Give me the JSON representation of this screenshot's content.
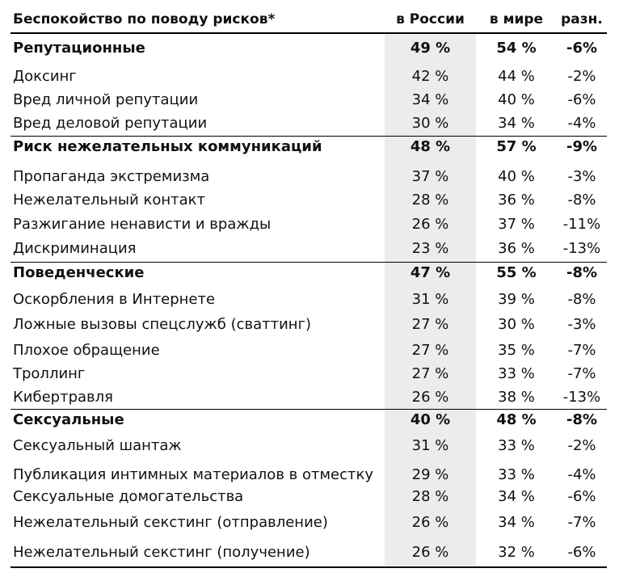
{
  "table": {
    "header": {
      "title": "Беспокойство по поводу рисков*",
      "col_russia": "в России",
      "col_world": "в мире",
      "col_diff": "разн."
    },
    "rows": [
      {
        "label": "Репутационные",
        "russia": "49 %",
        "world": "54 %",
        "diff": "-6%",
        "group": true
      },
      {
        "label": "Доксинг",
        "russia": "42 %",
        "world": "44 %",
        "diff": "-2%"
      },
      {
        "label": "Вред личной репутации",
        "russia": "34 %",
        "world": "40 %",
        "diff": "-6%"
      },
      {
        "label": "Вред деловой репутации",
        "russia": "30 %",
        "world": "34 %",
        "diff": "-4%"
      },
      {
        "label": "Риск нежелательных коммуникаций",
        "russia": "48 %",
        "world": "57 %",
        "diff": "-9%",
        "group": true
      },
      {
        "label": "Пропаганда экстремизма",
        "russia": "37 %",
        "world": "40 %",
        "diff": "-3%"
      },
      {
        "label": "Нежелательный контакт",
        "russia": "28 %",
        "world": "36 %",
        "diff": "-8%"
      },
      {
        "label": "Разжигание ненависти и вражды",
        "russia": "26 %",
        "world": "37 %",
        "diff": "-11%"
      },
      {
        "label": "Дискриминация",
        "russia": "23 %",
        "world": "36 %",
        "diff": "-13%"
      },
      {
        "label": "Поведенческие",
        "russia": "47 %",
        "world": "55 %",
        "diff": "-8%",
        "group": true
      },
      {
        "label": "Оскорбления в Интернете",
        "russia": "31 %",
        "world": "39 %",
        "diff": "-8%"
      },
      {
        "label": "Ложные вызовы спецслужб (сваттинг)",
        "russia": "27 %",
        "world": "30 %",
        "diff": "-3%"
      },
      {
        "label": "Плохое обращение",
        "russia": "27 %",
        "world": "35 %",
        "diff": "-7%"
      },
      {
        "label": "Троллинг",
        "russia": "27 %",
        "world": "33 %",
        "diff": "-7%"
      },
      {
        "label": "Кибертравля",
        "russia": "26 %",
        "world": "38 %",
        "diff": "-13%"
      },
      {
        "label": "Сексуальные",
        "russia": "40 %",
        "world": "48 %",
        "diff": "-8%",
        "group": true
      },
      {
        "label": "Сексуальный шантаж",
        "russia": "31 %",
        "world": "33 %",
        "diff": "-2%"
      },
      {
        "label": "Публикация интимных материалов в отместку",
        "russia": "29 %",
        "world": "33 %",
        "diff": "-4%"
      },
      {
        "label": "Сексуальные домогательства",
        "russia": "28 %",
        "world": "34 %",
        "diff": "-6%"
      },
      {
        "label": "Нежелательный секстинг (отправление)",
        "russia": "26 %",
        "world": "34 %",
        "diff": "-7%"
      },
      {
        "label": "Нежелательный секстинг (получение)",
        "russia": "26 %",
        "world": "32 %",
        "diff": "-6%"
      }
    ]
  }
}
